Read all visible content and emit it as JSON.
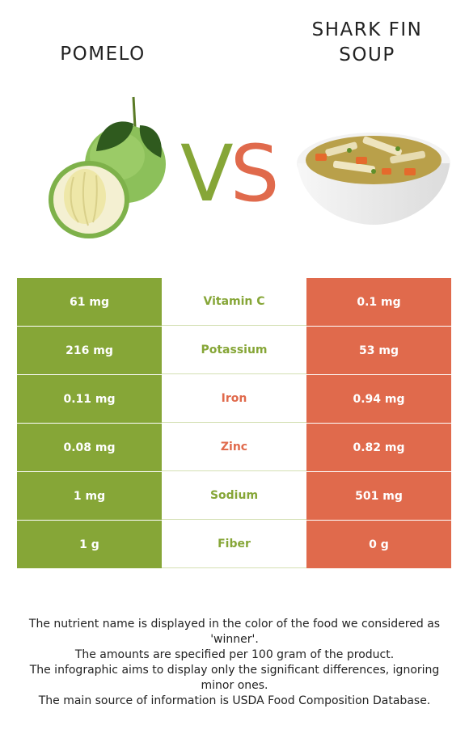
{
  "foods": {
    "left": {
      "name": "POMELO",
      "color": "#86a637",
      "image": "pomelo"
    },
    "right": {
      "name": "SHARK FIN\nSOUP",
      "name_line1": "SHARK FIN",
      "name_line2": "SOUP",
      "color": "#e06a4c",
      "image": "shark-fin-soup"
    }
  },
  "vs": {
    "v": "V",
    "s": "S"
  },
  "nutrients": [
    {
      "name": "Vitamin C",
      "left": "61 mg",
      "right": "0.1 mg",
      "winner": "left"
    },
    {
      "name": "Potassium",
      "left": "216 mg",
      "right": "53 mg",
      "winner": "left"
    },
    {
      "name": "Iron",
      "left": "0.11 mg",
      "right": "0.94 mg",
      "winner": "right"
    },
    {
      "name": "Zinc",
      "left": "0.08 mg",
      "right": "0.82 mg",
      "winner": "right"
    },
    {
      "name": "Sodium",
      "left": "1 mg",
      "right": "501 mg",
      "winner": "left"
    },
    {
      "name": "Fiber",
      "left": "1 g",
      "right": "0 g",
      "winner": "left"
    }
  ],
  "notes": [
    "The nutrient name is displayed in the color of the food we considered as 'winner'.",
    "The amounts are specified per 100 gram of the product.",
    "The infographic aims to display only the significant differences, ignoring minor ones.",
    "The main source of information is USDA Food Composition Database."
  ]
}
